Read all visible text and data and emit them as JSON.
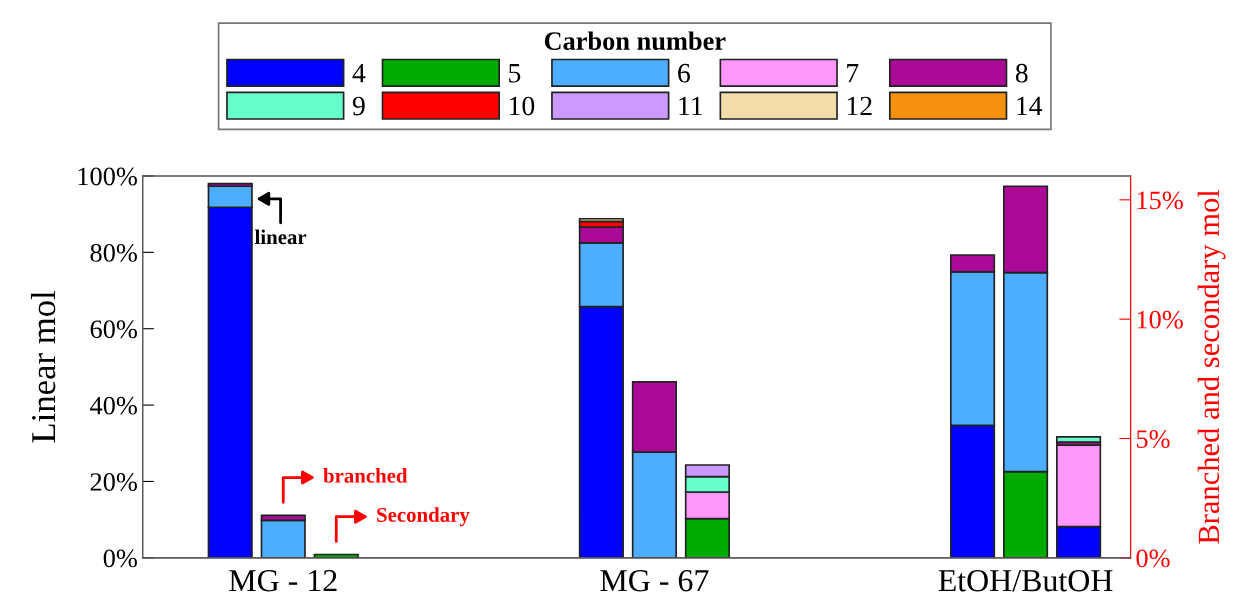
{
  "chart_data": {
    "type": "bar",
    "stacked": true,
    "legend": "top",
    "legend_title": "Carbon number",
    "grid": false,
    "ylabel": "Linear mol",
    "y2label": "Branched and secondary mol",
    "categories": [
      null,
      "MG - 12",
      null,
      null,
      null,
      null,
      null,
      null,
      "MG - 67",
      null,
      null,
      null,
      null,
      null,
      null,
      "EtOH/ButOH",
      null
    ],
    "ylim": [
      0,
      100
    ],
    "yticks": [
      {
        "value": 0,
        "label": "0%"
      },
      {
        "value": 20,
        "label": "20%"
      },
      {
        "value": 40,
        "label": "40%"
      },
      {
        "value": 60,
        "label": "60%"
      },
      {
        "value": 80,
        "label": "80%"
      },
      {
        "value": 100,
        "label": "100%"
      }
    ],
    "y2lim": [
      0,
      16
    ],
    "y2ticks": [
      {
        "value": 0,
        "label": "0%"
      },
      {
        "value": 5,
        "label": "5%"
      },
      {
        "value": 10,
        "label": "10%"
      },
      {
        "value": 15,
        "label": "15%"
      }
    ],
    "annotations": [
      "linear",
      "branched",
      "Secondary"
    ],
    "series": [
      {
        "name": "4",
        "color": "#0000ff",
        "axis": "y",
        "values": [
          91.8,
          null,
          null,
          null,
          null,
          null,
          null,
          65.8,
          null,
          null,
          null,
          null,
          null,
          null,
          34.7,
          null,
          null
        ]
      },
      {
        "color": "#0000ff",
        "axis": "y2",
        "values": [
          null,
          null,
          null,
          null,
          null,
          null,
          null,
          null,
          null,
          null,
          null,
          null,
          null,
          null,
          null,
          null,
          1.31
        ]
      },
      {
        "name": "5",
        "color": "#00aa00",
        "axis": "y2",
        "values": [
          null,
          null,
          0.14,
          null,
          null,
          null,
          null,
          null,
          null,
          1.64,
          null,
          null,
          null,
          null,
          null,
          3.61,
          null
        ]
      },
      {
        "name": "6",
        "color": "#4daeff",
        "axis": "y",
        "values": [
          5.5,
          null,
          null,
          null,
          null,
          null,
          null,
          16.7,
          null,
          null,
          null,
          null,
          null,
          null,
          40.2,
          null,
          null
        ]
      },
      {
        "color": "#4daeff",
        "axis": "y2",
        "values": [
          null,
          1.57,
          null,
          null,
          null,
          null,
          null,
          null,
          4.43,
          null,
          null,
          null,
          null,
          null,
          null,
          8.34,
          null
        ]
      },
      {
        "name": "7",
        "color": "#ff96fa",
        "axis": "y2",
        "values": [
          null,
          null,
          null,
          null,
          null,
          null,
          null,
          null,
          null,
          1.12,
          null,
          null,
          null,
          null,
          null,
          null,
          3.41
        ]
      },
      {
        "name": "8",
        "color": "#aa0a96",
        "axis": "y",
        "values": [
          0.7,
          null,
          null,
          null,
          null,
          null,
          null,
          4.1,
          null,
          null,
          null,
          null,
          null,
          null,
          4.4,
          null,
          null
        ]
      },
      {
        "color": "#aa0a96",
        "axis": "y2",
        "values": [
          null,
          0.21,
          null,
          null,
          null,
          null,
          null,
          null,
          2.94,
          null,
          null,
          null,
          null,
          null,
          null,
          3.62,
          0.13
        ]
      },
      {
        "name": "9",
        "color": "#66ffcc",
        "axis": "y2",
        "values": [
          null,
          null,
          null,
          null,
          null,
          null,
          null,
          null,
          null,
          0.64,
          null,
          null,
          null,
          null,
          null,
          null,
          0.22
        ]
      },
      {
        "name": "10",
        "color": "#ff0000",
        "axis": "y",
        "values": [
          null,
          null,
          null,
          null,
          null,
          null,
          null,
          1.5,
          null,
          null,
          null,
          null,
          null,
          null,
          null,
          null,
          null
        ]
      },
      {
        "name": "11",
        "color": "#cc99ff",
        "axis": "y2",
        "values": [
          null,
          null,
          null,
          null,
          null,
          null,
          null,
          null,
          null,
          0.49,
          null,
          null,
          null,
          null,
          null,
          null,
          null
        ]
      },
      {
        "name": "12",
        "color": "#f2dcaa",
        "axis": "y",
        "values": [
          null,
          null,
          null,
          null,
          null,
          null,
          null,
          0.7,
          null,
          null,
          null,
          null,
          null,
          null,
          null,
          null,
          null
        ]
      },
      {
        "name": "14",
        "color": "#f5910f",
        "axis": "y",
        "values": [
          null,
          null,
          null,
          null,
          null,
          null,
          null,
          null,
          null,
          null,
          null,
          null,
          null,
          null,
          null,
          null,
          null
        ]
      }
    ]
  }
}
